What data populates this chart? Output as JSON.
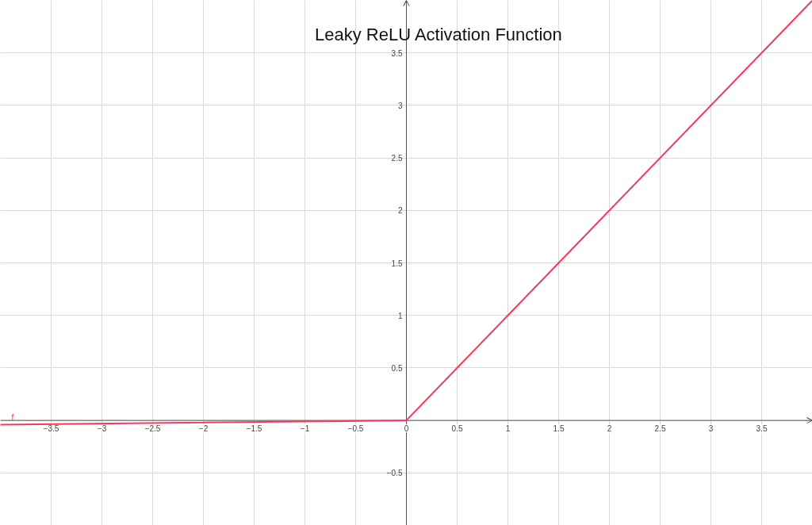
{
  "chart_data": {
    "type": "line",
    "title": "Leaky ReLU Activation Function",
    "xlim": [
      -4,
      4
    ],
    "ylim": [
      -1,
      4
    ],
    "xticks": [
      {
        "value": -3.5,
        "label": "−3.5"
      },
      {
        "value": -3,
        "label": "−3"
      },
      {
        "value": -2.5,
        "label": "−2.5"
      },
      {
        "value": -2,
        "label": "−2"
      },
      {
        "value": -1.5,
        "label": "−1.5"
      },
      {
        "value": -1,
        "label": "−1"
      },
      {
        "value": -0.5,
        "label": "−0.5"
      },
      0,
      0.5,
      1,
      1.5,
      2,
      2.5,
      3,
      3.5
    ],
    "yticks": [
      {
        "value": -0.5,
        "label": "−0.5"
      },
      {
        "value": 0,
        "label": null
      },
      0.5,
      1,
      1.5,
      2,
      2.5,
      3,
      3.5
    ],
    "grid": true,
    "series": [
      {
        "name": "f",
        "color": "#f23b5c",
        "x": [
          -4,
          0,
          4
        ],
        "values": [
          -0.04,
          0,
          4
        ]
      }
    ]
  }
}
